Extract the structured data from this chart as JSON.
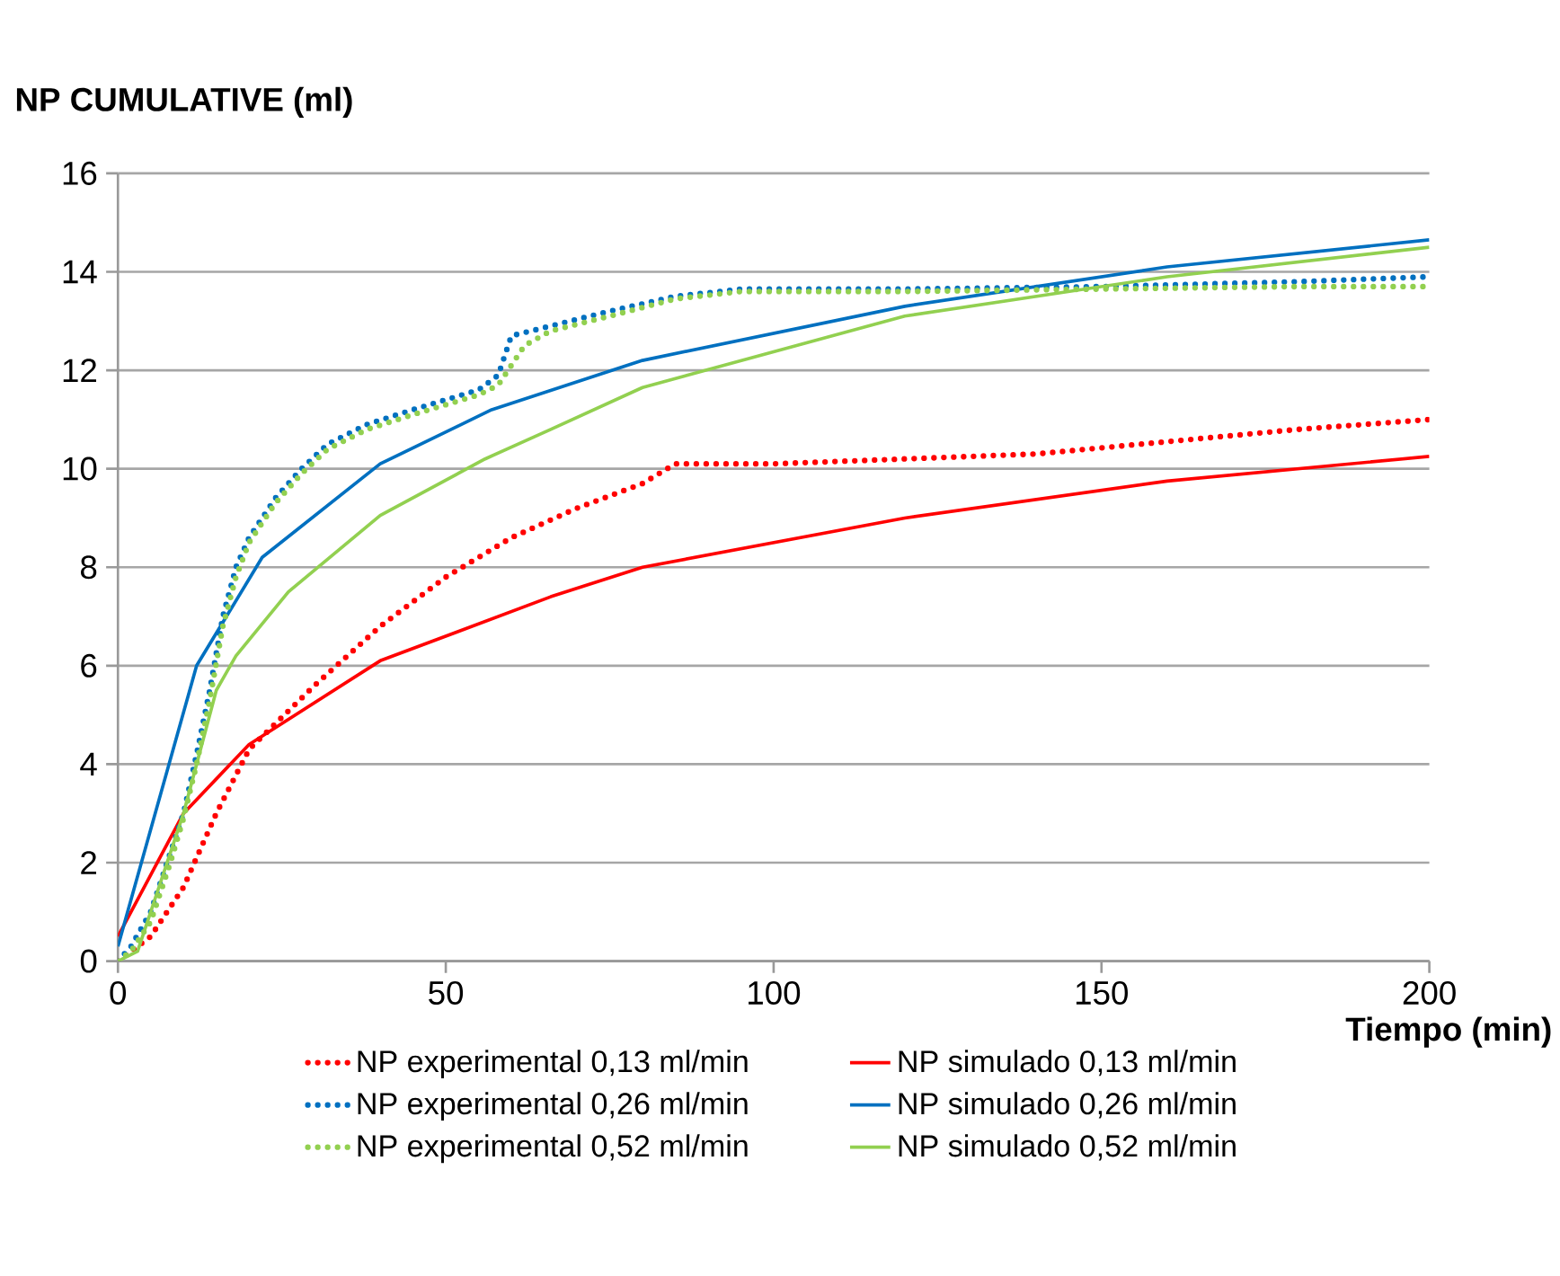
{
  "chart_data": {
    "type": "line",
    "xlabel": "Tiempo  (min)",
    "ylabel": "NP   CUMULATIVE (ml)",
    "xlim": [
      0,
      200
    ],
    "ylim": [
      0,
      16
    ],
    "xticks": [
      0,
      50,
      100,
      150,
      200
    ],
    "yticks": [
      0,
      2,
      4,
      6,
      8,
      10,
      12,
      14,
      16
    ],
    "grid": "y",
    "legend": "bottom",
    "marker": "none",
    "series": [
      {
        "name": "NP experimental 0,13 ml/min",
        "color": "#ff0000",
        "line_style": "dotted",
        "x": [
          0,
          5,
          10,
          15,
          20,
          30,
          40,
          50,
          60,
          70,
          80,
          85,
          100,
          120,
          140,
          160,
          180,
          200
        ],
        "values": [
          0,
          0.5,
          1.5,
          3,
          4.3,
          5.6,
          6.8,
          7.8,
          8.6,
          9.2,
          9.7,
          10.1,
          10.1,
          10.2,
          10.3,
          10.55,
          10.8,
          11.0
        ]
      },
      {
        "name": "NP simulado 0,13 ml/min",
        "color": "#ff0000",
        "line_style": "solid",
        "x": [
          0,
          10,
          20,
          40,
          66,
          80,
          120,
          160,
          200
        ],
        "values": [
          0.5,
          3,
          4.4,
          6.1,
          7.4,
          8.0,
          9.0,
          9.75,
          10.25
        ]
      },
      {
        "name": "NP experimental 0,26 ml/min",
        "color": "#0070c0",
        "line_style": "dotted",
        "x": [
          0,
          2,
          5,
          8,
          10,
          12,
          14,
          16,
          18,
          20,
          24,
          28,
          32,
          38,
          45,
          55,
          58,
          60,
          66,
          75,
          85,
          95,
          120,
          150,
          180,
          200
        ],
        "values": [
          0,
          0.3,
          1,
          2.2,
          3,
          4.2,
          5.5,
          7,
          8,
          8.6,
          9.4,
          10,
          10.5,
          10.9,
          11.2,
          11.6,
          11.9,
          12.7,
          12.9,
          13.2,
          13.5,
          13.65,
          13.65,
          13.7,
          13.8,
          13.9
        ]
      },
      {
        "name": "NP simulado 0,26 ml/min",
        "color": "#0070c0",
        "line_style": "solid",
        "x": [
          0,
          12,
          22,
          40,
          57,
          80,
          120,
          160,
          200
        ],
        "values": [
          0.3,
          6,
          8.2,
          10.1,
          11.2,
          12.2,
          13.3,
          14.1,
          14.65
        ]
      },
      {
        "name": "NP experimental 0,52 ml/min",
        "color": "#92d050",
        "line_style": "dotted",
        "x": [
          0,
          2,
          5,
          8,
          10,
          12,
          14,
          16,
          18,
          20,
          24,
          28,
          32,
          38,
          45,
          55,
          58,
          62,
          66,
          75,
          85,
          95,
          120,
          150,
          180,
          200
        ],
        "values": [
          0,
          0.2,
          0.8,
          2,
          2.9,
          4,
          5.3,
          6.8,
          7.8,
          8.5,
          9.3,
          9.9,
          10.4,
          10.8,
          11.1,
          11.5,
          11.7,
          12.5,
          12.8,
          13.1,
          13.45,
          13.6,
          13.6,
          13.65,
          13.7,
          13.7
        ]
      },
      {
        "name": "NP simulado 0,52 ml/min",
        "color": "#92d050",
        "line_style": "solid",
        "x": [
          0,
          3,
          10,
          15,
          18,
          26,
          40,
          56,
          66,
          80,
          120,
          160,
          200
        ],
        "values": [
          0,
          0.2,
          3,
          5.5,
          6.2,
          7.5,
          9.05,
          10.2,
          10.8,
          11.65,
          13.1,
          13.9,
          14.5
        ]
      }
    ]
  }
}
